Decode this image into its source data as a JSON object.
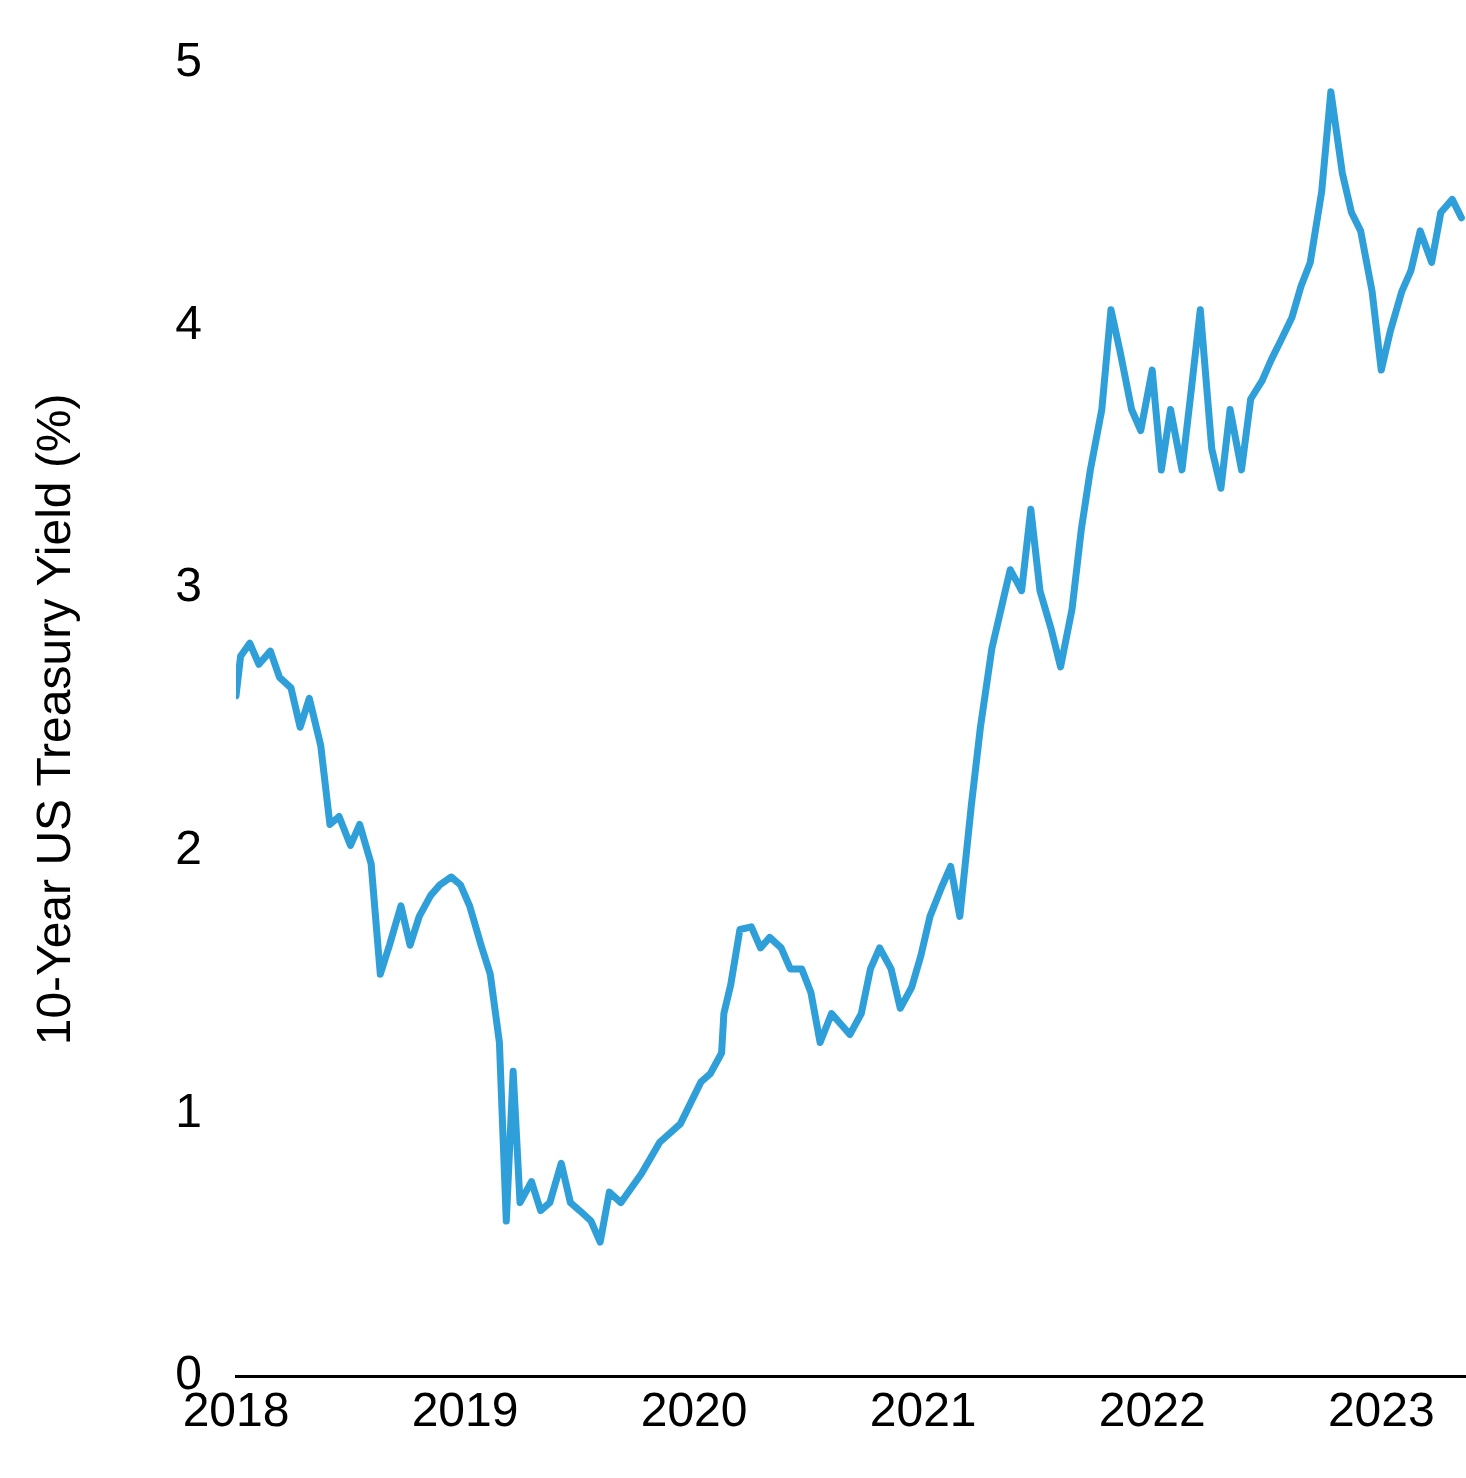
{
  "chart_data": {
    "type": "line",
    "ylabel": "10-Year US Treasury Yield (%)",
    "xlim": [
      2018,
      2023.37
    ],
    "xticks": [
      2018,
      2019,
      2020,
      2021,
      2022,
      2023
    ],
    "ylim": [
      0,
      5
    ],
    "yticks": [
      0,
      1,
      2,
      3,
      4,
      5
    ],
    "grid": false,
    "legend": false,
    "marker": "none",
    "line_style": "solid",
    "series": [
      {
        "color": "#2e9fd9",
        "x": [
          2018.0,
          2018.02,
          2018.06,
          2018.1,
          2018.15,
          2018.19,
          2018.24,
          2018.28,
          2018.32,
          2018.37,
          2018.41,
          2018.45,
          2018.5,
          2018.54,
          2018.59,
          2018.63,
          2018.67,
          2018.72,
          2018.76,
          2018.8,
          2018.85,
          2018.89,
          2018.94,
          2018.98,
          2019.02,
          2019.07,
          2019.11,
          2019.15,
          2019.18,
          2019.21,
          2019.24,
          2019.29,
          2019.33,
          2019.37,
          2019.42,
          2019.46,
          2019.5,
          2019.55,
          2019.59,
          2019.63,
          2019.68,
          2019.77,
          2019.85,
          2019.94,
          2020.03,
          2020.07,
          2020.12,
          2020.13,
          2020.16,
          2020.2,
          2020.25,
          2020.29,
          2020.33,
          2020.38,
          2020.42,
          2020.47,
          2020.51,
          2020.55,
          2020.6,
          2020.64,
          2020.68,
          2020.73,
          2020.77,
          2020.81,
          2020.86,
          2020.9,
          2020.95,
          2020.99,
          2021.03,
          2021.08,
          2021.12,
          2021.16,
          2021.21,
          2021.25,
          2021.3,
          2021.34,
          2021.38,
          2021.43,
          2021.47,
          2021.51,
          2021.56,
          2021.6,
          2021.65,
          2021.69,
          2021.73,
          2021.78,
          2021.82,
          2021.86,
          2021.91,
          2021.95,
          2022.0,
          2022.04,
          2022.08,
          2022.13,
          2022.17,
          2022.21,
          2022.26,
          2022.3,
          2022.34,
          2022.39,
          2022.43,
          2022.48,
          2022.52,
          2022.56,
          2022.61,
          2022.65,
          2022.69,
          2022.74,
          2022.78,
          2022.83,
          2022.87,
          2022.91,
          2022.96,
          2023.0,
          2023.04,
          2023.09,
          2023.13,
          2023.17,
          2023.22,
          2023.26,
          2023.31,
          2023.35
        ],
        "values": [
          2.59,
          2.74,
          2.79,
          2.71,
          2.76,
          2.66,
          2.62,
          2.47,
          2.58,
          2.4,
          2.1,
          2.13,
          2.02,
          2.1,
          1.95,
          1.53,
          1.64,
          1.79,
          1.64,
          1.75,
          1.83,
          1.87,
          1.9,
          1.87,
          1.79,
          1.64,
          1.53,
          1.27,
          0.59,
          1.16,
          0.66,
          0.74,
          0.63,
          0.66,
          0.81,
          0.66,
          0.63,
          0.59,
          0.51,
          0.7,
          0.66,
          0.77,
          0.89,
          0.96,
          1.12,
          1.15,
          1.23,
          1.38,
          1.49,
          1.7,
          1.71,
          1.63,
          1.67,
          1.63,
          1.55,
          1.55,
          1.46,
          1.27,
          1.38,
          1.34,
          1.3,
          1.38,
          1.55,
          1.63,
          1.55,
          1.4,
          1.48,
          1.6,
          1.75,
          1.86,
          1.94,
          1.75,
          2.17,
          2.47,
          2.77,
          2.92,
          3.07,
          2.99,
          3.3,
          2.99,
          2.84,
          2.7,
          2.92,
          3.22,
          3.45,
          3.68,
          4.06,
          3.9,
          3.68,
          3.6,
          3.83,
          3.45,
          3.68,
          3.45,
          3.75,
          4.06,
          3.53,
          3.38,
          3.68,
          3.45,
          3.72,
          3.79,
          3.87,
          3.94,
          4.03,
          4.15,
          4.24,
          4.51,
          4.89,
          4.58,
          4.43,
          4.36,
          4.13,
          3.83,
          3.98,
          4.13,
          4.21,
          4.36,
          4.24,
          4.43,
          4.48,
          4.41
        ]
      }
    ]
  }
}
